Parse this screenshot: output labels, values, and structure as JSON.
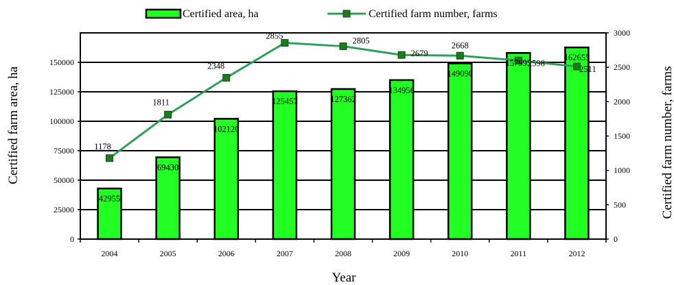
{
  "chart_data": {
    "type": "bar",
    "categories": [
      "2004",
      "2005",
      "2006",
      "2007",
      "2008",
      "2009",
      "2010",
      "2011",
      "2012"
    ],
    "series": [
      {
        "name": "Certified area, ha",
        "type": "bar",
        "axis": "left",
        "color": "#22ff22",
        "values": [
          42955,
          69430,
          102120,
          125457,
          127362,
          134956,
          149090,
          157995,
          162655
        ],
        "labels": [
          "42955",
          "69430",
          "102120",
          "125457",
          "127362",
          "134956",
          "149090",
          "157995",
          "162655"
        ]
      },
      {
        "name": "Certified farm number, farms",
        "type": "line",
        "axis": "right",
        "color": "#2f9e5a",
        "marker_color": "#1e7a1e",
        "values": [
          1178,
          1811,
          2348,
          2855,
          2805,
          2679,
          2668,
          2598,
          2511
        ],
        "labels": [
          "1178",
          "1811",
          "2348",
          "2855",
          "2805",
          "2679",
          "2668",
          "2598",
          "2511"
        ]
      }
    ],
    "xlabel": "Year",
    "ylabel": "Certified farm area, ha",
    "y2label": "Certified farm number, farms",
    "ylim": [
      0,
      175000
    ],
    "y2lim": [
      0,
      3000
    ],
    "yticks": [
      0,
      25000,
      50000,
      75000,
      100000,
      125000,
      150000
    ],
    "y2ticks": [
      0,
      500,
      1000,
      1500,
      2000,
      2500,
      3000
    ],
    "grid": "horizontal",
    "legend": "top"
  }
}
